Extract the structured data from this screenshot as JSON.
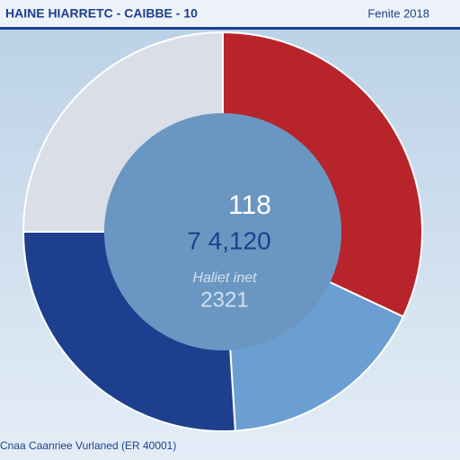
{
  "chart_data": {
    "type": "donut",
    "title": "HAINE HIARRETC - CAIBBE - 10",
    "subtitle": "Fenite 2018",
    "values": [
      32,
      17,
      26,
      25
    ],
    "colors": [
      "#b8242b",
      "#6b9fd2",
      "#1d3f8e",
      "#d9dee9"
    ],
    "center_labels": [
      "118",
      "7 4,120",
      "Haliet inet",
      "2321"
    ],
    "footer": "Cnaa Caanriee Vurlaned (ER 40001)"
  }
}
